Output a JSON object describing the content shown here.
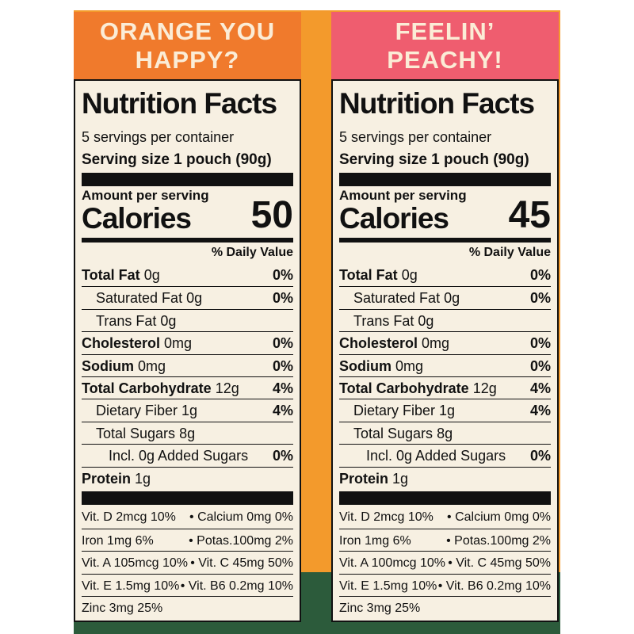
{
  "panels": [
    {
      "header": "ORANGE YOU HAPPY?",
      "title": "Nutrition Facts",
      "servings": "5 servings per container",
      "serving_size": "Serving size 1 pouch (90g)",
      "amount_label": "Amount per serving",
      "calories_label": "Calories",
      "calories": "50",
      "dv_header": "% Daily Value",
      "nutrients": [
        {
          "name": "Total Fat",
          "amount": "0g",
          "dv": "0%"
        },
        {
          "name": "Saturated Fat",
          "amount": "0g",
          "dv": "0%"
        },
        {
          "name": "Trans Fat",
          "amount": "0g"
        },
        {
          "name": "Cholesterol",
          "amount": "0mg",
          "dv": "0%"
        },
        {
          "name": "Sodium",
          "amount": "0mg",
          "dv": "0%"
        },
        {
          "name": "Total Carbohydrate",
          "amount": "12g",
          "dv": "4%"
        },
        {
          "name": "Dietary Fiber",
          "amount": "1g",
          "dv": "4%"
        },
        {
          "name": "Total Sugars",
          "amount": "8g"
        },
        {
          "name": "Incl. 0g Added Sugars",
          "dv": "0%"
        },
        {
          "name": "Protein",
          "amount": "1g"
        }
      ],
      "vitamins": [
        [
          "Vit. D 2mcg 10%",
          "• Calcium 0mg 0%"
        ],
        [
          "Iron 1mg 6%",
          "• Potas.100mg 2%"
        ],
        [
          "Vit. A 105mcg 10%",
          "• Vit. C 45mg 50%"
        ],
        [
          "Vit. E 1.5mg 10%",
          "• Vit. B6 0.2mg 10%"
        ],
        [
          "Zinc 3mg 25%"
        ]
      ]
    },
    {
      "header": "FEELIN’ PEACHY!",
      "title": "Nutrition Facts",
      "servings": "5 servings per container",
      "serving_size": "Serving size 1 pouch (90g)",
      "amount_label": "Amount per serving",
      "calories_label": "Calories",
      "calories": "45",
      "dv_header": "% Daily Value",
      "nutrients": [
        {
          "name": "Total Fat",
          "amount": "0g",
          "dv": "0%"
        },
        {
          "name": "Saturated Fat",
          "amount": "0g",
          "dv": "0%"
        },
        {
          "name": "Trans Fat",
          "amount": "0g"
        },
        {
          "name": "Cholesterol",
          "amount": "0mg",
          "dv": "0%"
        },
        {
          "name": "Sodium",
          "amount": "0mg",
          "dv": "0%"
        },
        {
          "name": "Total Carbohydrate",
          "amount": "12g",
          "dv": "4%"
        },
        {
          "name": "Dietary Fiber",
          "amount": "1g",
          "dv": "4%"
        },
        {
          "name": "Total Sugars",
          "amount": "8g"
        },
        {
          "name": "Incl. 0g Added Sugars",
          "dv": "0%"
        },
        {
          "name": "Protein",
          "amount": "1g"
        }
      ],
      "vitamins": [
        [
          "Vit. D 2mcg 10%",
          "• Calcium 0mg 0%"
        ],
        [
          "Iron 1mg 6%",
          "• Potas.100mg 2%"
        ],
        [
          "Vit. A 100mcg 10%",
          "• Vit. C 45mg 50%"
        ],
        [
          "Vit. E 1.5mg 10%",
          "• Vit. B6 0.2mg 10%"
        ],
        [
          "Zinc 3mg 25%"
        ]
      ]
    }
  ]
}
